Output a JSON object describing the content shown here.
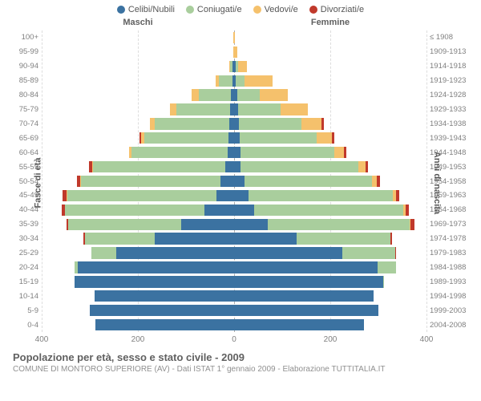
{
  "legend": [
    {
      "label": "Celibi/Nubili",
      "color": "#3b72a1"
    },
    {
      "label": "Coniugati/e",
      "color": "#a9ce9d"
    },
    {
      "label": "Vedovi/e",
      "color": "#f5c16c"
    },
    {
      "label": "Divorziati/e",
      "color": "#c0392b"
    }
  ],
  "headers": {
    "male": "Maschi",
    "female": "Femmine"
  },
  "axis_titles": {
    "left": "Fasce di età",
    "right": "Anni di nascita"
  },
  "x_ticks": [
    400,
    200,
    0,
    200,
    400
  ],
  "x_max": 400,
  "title": "Popolazione per età, sesso e stato civile - 2009",
  "subtitle": "COMUNE DI MONTORO SUPERIORE (AV) - Dati ISTAT 1° gennaio 2009 - Elaborazione TUTTITALIA.IT",
  "rows": [
    {
      "age": "100+",
      "year": "≤ 1908",
      "m": [
        0,
        0,
        2,
        0
      ],
      "f": [
        0,
        0,
        2,
        0
      ]
    },
    {
      "age": "95-99",
      "year": "1909-1913",
      "m": [
        0,
        0,
        2,
        0
      ],
      "f": [
        0,
        0,
        6,
        0
      ]
    },
    {
      "age": "90-94",
      "year": "1914-1918",
      "m": [
        3,
        5,
        2,
        0
      ],
      "f": [
        3,
        6,
        18,
        0
      ]
    },
    {
      "age": "85-89",
      "year": "1919-1923",
      "m": [
        3,
        28,
        8,
        0
      ],
      "f": [
        4,
        18,
        58,
        0
      ]
    },
    {
      "age": "80-84",
      "year": "1924-1928",
      "m": [
        6,
        68,
        14,
        0
      ],
      "f": [
        6,
        48,
        58,
        0
      ]
    },
    {
      "age": "75-79",
      "year": "1929-1933",
      "m": [
        8,
        112,
        14,
        0
      ],
      "f": [
        8,
        88,
        58,
        0
      ]
    },
    {
      "age": "70-74",
      "year": "1934-1938",
      "m": [
        10,
        155,
        10,
        0
      ],
      "f": [
        10,
        130,
        42,
        4
      ]
    },
    {
      "age": "65-69",
      "year": "1939-1943",
      "m": [
        12,
        175,
        6,
        4
      ],
      "f": [
        12,
        160,
        32,
        4
      ]
    },
    {
      "age": "60-64",
      "year": "1944-1948",
      "m": [
        14,
        200,
        4,
        0
      ],
      "f": [
        14,
        195,
        20,
        4
      ]
    },
    {
      "age": "55-59",
      "year": "1949-1953",
      "m": [
        18,
        275,
        2,
        6
      ],
      "f": [
        14,
        245,
        14,
        6
      ]
    },
    {
      "age": "50-54",
      "year": "1954-1958",
      "m": [
        28,
        290,
        2,
        6
      ],
      "f": [
        22,
        265,
        10,
        6
      ]
    },
    {
      "age": "45-49",
      "year": "1959-1963",
      "m": [
        36,
        310,
        2,
        8
      ],
      "f": [
        30,
        300,
        6,
        8
      ]
    },
    {
      "age": "40-44",
      "year": "1964-1968",
      "m": [
        62,
        290,
        0,
        6
      ],
      "f": [
        42,
        310,
        4,
        8
      ]
    },
    {
      "age": "35-39",
      "year": "1969-1973",
      "m": [
        110,
        235,
        0,
        4
      ],
      "f": [
        70,
        295,
        2,
        8
      ]
    },
    {
      "age": "30-34",
      "year": "1974-1978",
      "m": [
        165,
        145,
        0,
        4
      ],
      "f": [
        130,
        195,
        0,
        4
      ]
    },
    {
      "age": "25-29",
      "year": "1979-1983",
      "m": [
        245,
        52,
        0,
        0
      ],
      "f": [
        225,
        110,
        0,
        2
      ]
    },
    {
      "age": "20-24",
      "year": "1984-1988",
      "m": [
        325,
        6,
        0,
        0
      ],
      "f": [
        298,
        38,
        0,
        0
      ]
    },
    {
      "age": "15-19",
      "year": "1989-1993",
      "m": [
        332,
        0,
        0,
        0
      ],
      "f": [
        310,
        2,
        0,
        0
      ]
    },
    {
      "age": "10-14",
      "year": "1994-1998",
      "m": [
        290,
        0,
        0,
        0
      ],
      "f": [
        290,
        0,
        0,
        0
      ]
    },
    {
      "age": "5-9",
      "year": "1999-2003",
      "m": [
        300,
        0,
        0,
        0
      ],
      "f": [
        300,
        0,
        0,
        0
      ]
    },
    {
      "age": "0-4",
      "year": "2004-2008",
      "m": [
        288,
        0,
        0,
        0
      ],
      "f": [
        270,
        0,
        0,
        0
      ]
    }
  ]
}
